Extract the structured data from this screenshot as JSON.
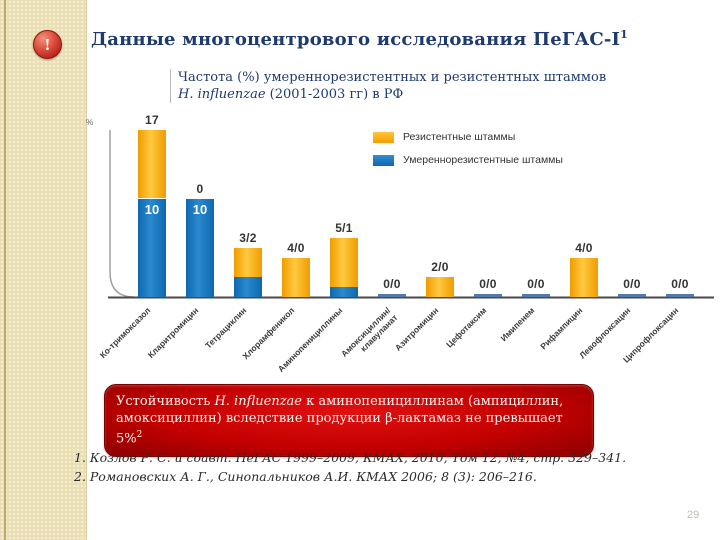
{
  "slide": {
    "title": "Данные многоцентрового исследования ПеГАС-I",
    "title_sup": "1",
    "subtitle_line1": "Частота (%) умереннорезистентных и резистентных штаммов",
    "subtitle_italic": "H. influenzae",
    "subtitle_line2_rest": " (2001-2003 гг) в РФ",
    "page_number": "29"
  },
  "icon": {
    "name": "alert-icon",
    "glyph": "!"
  },
  "chart_data": {
    "type": "bar",
    "stacked": true,
    "title": "Частота (%) умереннорезистентных и резистентных штаммов H. influenzae (2001-2003 гг) в РФ",
    "xlabel": "",
    "ylabel": "%",
    "ylim": [
      0,
      17
    ],
    "grid": false,
    "legend_position": "top-right",
    "categories": [
      "Ко-тримоксазол",
      "Кларитромицин",
      "Тетрациклин",
      "Хлорамфеникол",
      "Аминопенициллины",
      "Амоксициллин/\nклавуланат",
      "Азитромицин",
      "Цефотаксим",
      "Имипенем",
      "Рифампицин",
      "Левофлоксацин",
      "Ципрофлоксацин"
    ],
    "series": [
      {
        "name": "Резистентные штаммы",
        "color": "#F9A51A",
        "values": [
          7,
          0,
          3,
          4,
          5,
          0,
          2,
          0,
          0,
          4,
          0,
          0
        ]
      },
      {
        "name": "Умереннорезистентные штаммы",
        "color": "#1B75BC",
        "values": [
          10,
          10,
          2,
          0,
          1,
          0,
          0,
          0,
          0,
          0,
          0,
          0
        ]
      }
    ],
    "bar_labels": [
      "17",
      "0",
      "3/2",
      "4/0",
      "5/1",
      "0/0",
      "2/0",
      "0/0",
      "0/0",
      "4/0",
      "0/0",
      "0/0"
    ],
    "inner_labels": [
      "10",
      "10",
      "",
      "",
      "",
      "",
      "",
      "",
      "",
      "",
      "",
      ""
    ]
  },
  "callout": {
    "lead": "Устойчивость ",
    "italic": "H. influenzae",
    "rest": " к аминопенициллинам (ампициллин,\nамоксициллин) вследствие продукции β-лактамаз не превышает 5%",
    "sup": "2"
  },
  "footnotes": [
    "1. Козлов Р. С. и соавт. ПеГАС 1999–2009, КМАХ, 2010, Том 12, №4, стр. 329–341.",
    "2. Романовских А. Г., Синопальников А.И. КМАХ 2006; 8 (3): 206–216."
  ],
  "colors": {
    "resistant": "#F9A51A",
    "intermediate": "#1B75BC",
    "title": "#1E3A6E",
    "callout_bg": "#C00000",
    "sidebar": "#EBE0B4"
  }
}
